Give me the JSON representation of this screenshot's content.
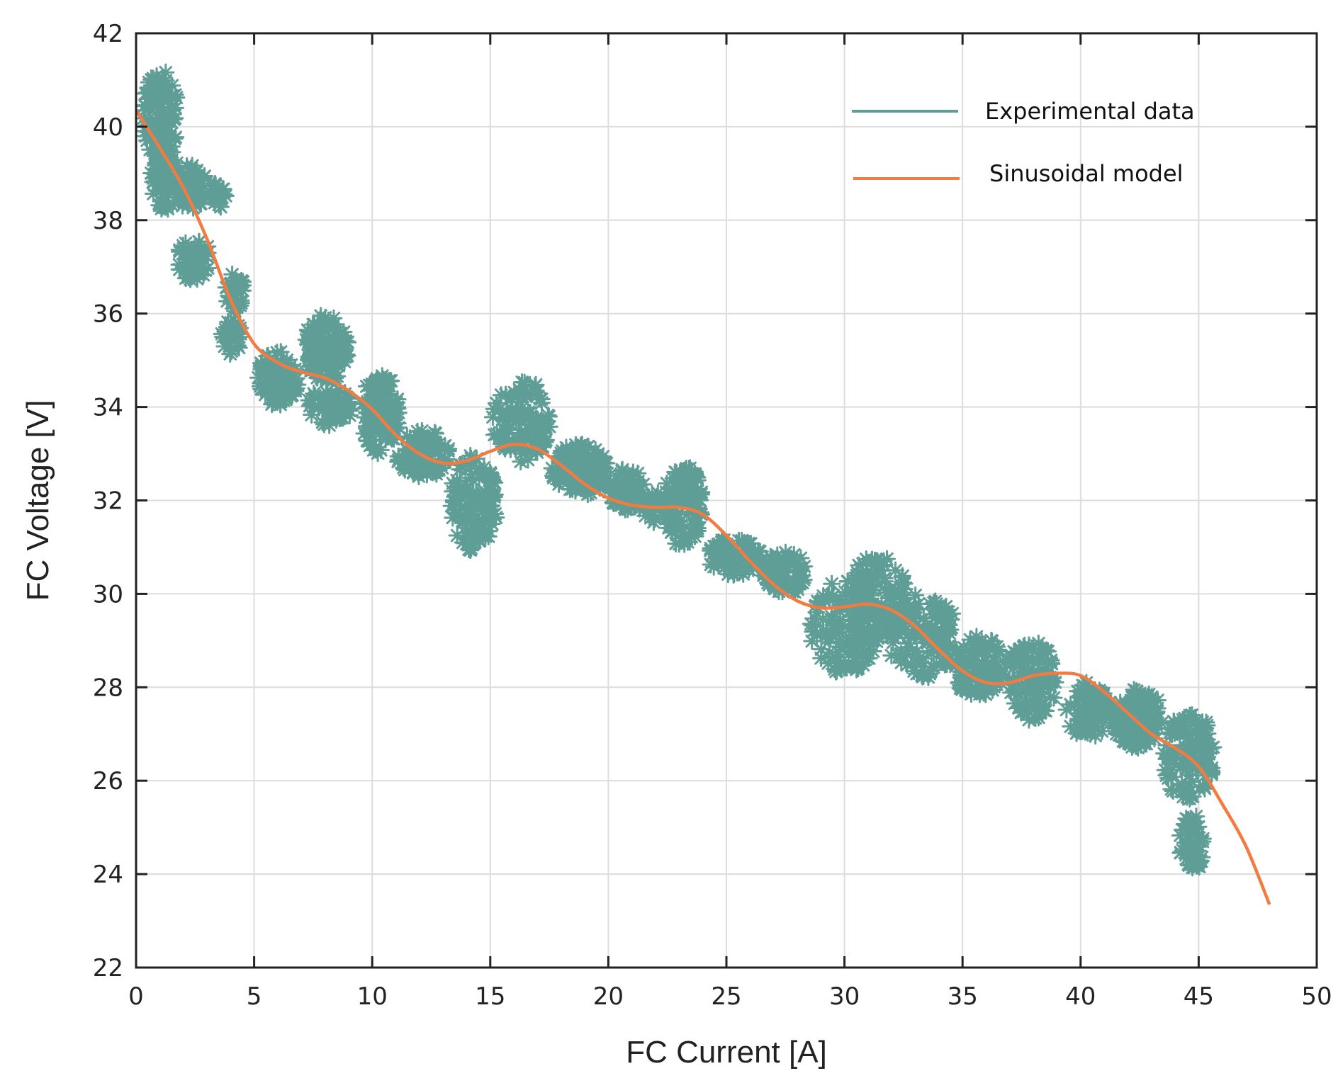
{
  "chart_data": {
    "type": "scatter",
    "title": "",
    "xlabel": "FC Current [A]",
    "ylabel": "FC Voltage [V]",
    "xlim": [
      0,
      50
    ],
    "ylim": [
      22,
      42
    ],
    "xticks": [
      0,
      5,
      10,
      15,
      20,
      25,
      30,
      35,
      40,
      45,
      50
    ],
    "yticks": [
      22,
      24,
      26,
      28,
      30,
      32,
      34,
      36,
      38,
      40,
      42
    ],
    "grid": true,
    "legend_position": "top-right",
    "colors": {
      "experimental": "#5f9e96",
      "model": "#f47b3f"
    },
    "series": [
      {
        "name": "Experimental data",
        "type": "scatter",
        "marker": "asterisk",
        "clusters": [
          {
            "x": [
              0.3,
              1.8
            ],
            "y": [
              39.3,
              41.2
            ]
          },
          {
            "x": [
              0.6,
              1.9
            ],
            "y": [
              38.2,
              39.6
            ]
          },
          {
            "x": [
              1.7,
              3.0
            ],
            "y": [
              38.2,
              39.2
            ]
          },
          {
            "x": [
              1.7,
              3.2
            ],
            "y": [
              36.7,
              37.6
            ]
          },
          {
            "x": [
              3.1,
              3.8
            ],
            "y": [
              38.2,
              38.8
            ]
          },
          {
            "x": [
              3.8,
              4.6
            ],
            "y": [
              36.0,
              36.9
            ]
          },
          {
            "x": [
              3.6,
              4.5
            ],
            "y": [
              35.1,
              35.9
            ]
          },
          {
            "x": [
              5.1,
              6.9
            ],
            "y": [
              34.0,
              35.2
            ]
          },
          {
            "x": [
              7.1,
              9.0
            ],
            "y": [
              34.5,
              36.0
            ]
          },
          {
            "x": [
              7.2,
              9.2
            ],
            "y": [
              33.6,
              34.4
            ]
          },
          {
            "x": [
              9.5,
              11.2
            ],
            "y": [
              33.0,
              34.7
            ]
          },
          {
            "x": [
              11.0,
              13.3
            ],
            "y": [
              32.5,
              33.5
            ]
          },
          {
            "x": [
              13.3,
              15.3
            ],
            "y": [
              30.9,
              33.0
            ]
          },
          {
            "x": [
              15.1,
              17.6
            ],
            "y": [
              32.8,
              34.6
            ]
          },
          {
            "x": [
              17.6,
              20.0
            ],
            "y": [
              32.1,
              33.2
            ]
          },
          {
            "x": [
              20.0,
              21.5
            ],
            "y": [
              31.8,
              32.7
            ]
          },
          {
            "x": [
              21.3,
              22.6
            ],
            "y": [
              31.5,
              32.2
            ]
          },
          {
            "x": [
              22.3,
              24.0
            ],
            "y": [
              31.0,
              32.8
            ]
          },
          {
            "x": [
              24.2,
              26.5
            ],
            "y": [
              30.4,
              31.2
            ]
          },
          {
            "x": [
              26.5,
              28.5
            ],
            "y": [
              30.0,
              30.9
            ]
          },
          {
            "x": [
              28.5,
              31.5
            ],
            "y": [
              28.3,
              30.3
            ]
          },
          {
            "x": [
              30.0,
              32.7
            ],
            "y": [
              29.0,
              30.8
            ]
          },
          {
            "x": [
              31.8,
              34.8
            ],
            "y": [
              28.2,
              30.0
            ]
          },
          {
            "x": [
              34.5,
              36.8
            ],
            "y": [
              27.8,
              29.1
            ]
          },
          {
            "x": [
              36.8,
              39.0
            ],
            "y": [
              27.3,
              29.0
            ]
          },
          {
            "x": [
              39.4,
              41.3
            ],
            "y": [
              26.9,
              28.1
            ]
          },
          {
            "x": [
              41.3,
              43.5
            ],
            "y": [
              26.7,
              28.0
            ]
          },
          {
            "x": [
              43.5,
              45.7
            ],
            "y": [
              25.5,
              27.5
            ]
          },
          {
            "x": [
              44.2,
              45.2
            ],
            "y": [
              24.0,
              25.3
            ]
          }
        ]
      },
      {
        "name": "Sinusoidal model",
        "type": "line",
        "x": [
          0,
          1,
          2,
          3,
          4,
          5,
          6,
          7,
          8,
          9,
          10,
          11,
          12,
          13,
          14,
          15,
          16,
          17,
          18,
          19,
          20,
          21,
          22,
          23,
          24,
          25,
          26,
          27,
          28,
          29,
          30,
          31,
          32,
          33,
          34,
          35,
          36,
          37,
          38,
          39,
          40,
          41,
          42,
          43,
          44,
          45,
          46,
          47,
          48
        ],
        "y": [
          40.35,
          39.55,
          38.7,
          37.6,
          36.3,
          35.35,
          34.95,
          34.75,
          34.62,
          34.35,
          33.95,
          33.4,
          33.0,
          32.8,
          32.85,
          33.05,
          33.2,
          33.1,
          32.75,
          32.35,
          32.05,
          31.9,
          31.85,
          31.85,
          31.7,
          31.25,
          30.7,
          30.2,
          29.85,
          29.7,
          29.72,
          29.78,
          29.65,
          29.3,
          28.8,
          28.35,
          28.1,
          28.1,
          28.25,
          28.3,
          28.25,
          27.9,
          27.45,
          27.0,
          26.7,
          26.3,
          25.5,
          24.6,
          23.35
        ]
      }
    ]
  }
}
